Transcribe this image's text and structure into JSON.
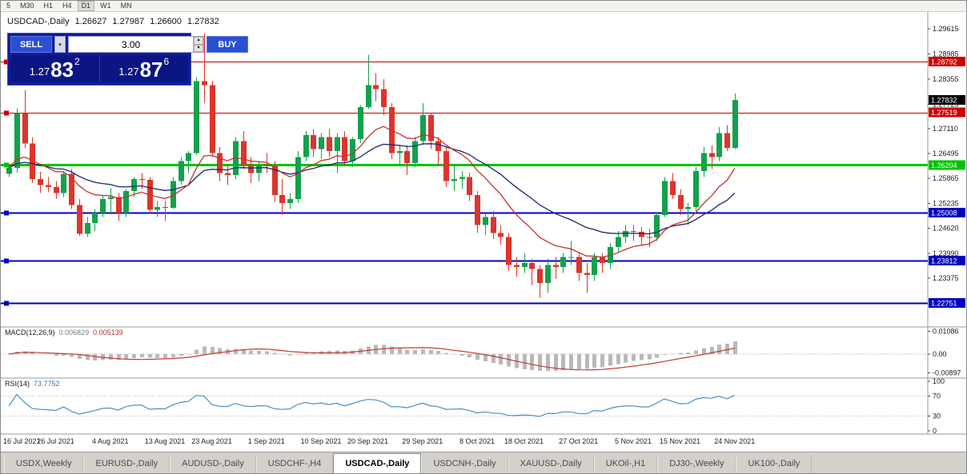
{
  "toolbar": {
    "timeframes": [
      {
        "label": "5",
        "active": false
      },
      {
        "label": "M30",
        "active": false
      },
      {
        "label": "H1",
        "active": false
      },
      {
        "label": "H4",
        "active": false
      },
      {
        "label": "D1",
        "active": true
      },
      {
        "label": "W1",
        "active": false
      },
      {
        "label": "MN",
        "active": false
      }
    ]
  },
  "ohlc_header": {
    "symbol": "USDCAD-,Daily",
    "open": "1.26627",
    "high": "1.27987",
    "low": "1.26600",
    "close": "1.27832"
  },
  "trade_panel": {
    "sell_label": "SELL",
    "buy_label": "BUY",
    "volume": "3.00",
    "sell_price": {
      "prefix": "1.27",
      "big": "83",
      "sup": "2"
    },
    "buy_price": {
      "prefix": "1.27",
      "big": "87",
      "sup": "6"
    },
    "button_color": "#2b4fd2",
    "panel_color": "#101d96"
  },
  "indicators": {
    "macd": {
      "name": "MACD(12,26,9)",
      "value_main": "0.006829",
      "value_signal": "0.005139",
      "histogram_color": "#b9b9b9",
      "signal_color": "#c03a3a",
      "axis": [
        {
          "v": 0.01086,
          "label": "0.01086"
        },
        {
          "v": 0,
          "label": "0.00"
        },
        {
          "v": -0.00897,
          "label": "-0.00897"
        }
      ]
    },
    "rsi": {
      "name": "RSI(14)",
      "value": "73.7752",
      "line_color": "#4a90c4",
      "levels": [
        70,
        30
      ],
      "axis": [
        {
          "v": 100,
          "label": "100"
        },
        {
          "v": 70,
          "label": "70"
        },
        {
          "v": 30,
          "label": "30"
        },
        {
          "v": 0,
          "label": "0"
        }
      ]
    }
  },
  "chart_data": {
    "type": "candlestick",
    "symbol": "USDCAD-,Daily",
    "up_color": "#13a14b",
    "down_color": "#dd342c",
    "ma_fast": {
      "period": 12,
      "color": "#c2342c"
    },
    "ma_slow": {
      "period": 26,
      "color": "#1c2670"
    },
    "bid": {
      "price": 1.27832,
      "label": "1.27832"
    },
    "hlines": [
      {
        "price": 1.28792,
        "color": "#cc0000",
        "width": 1,
        "label": "1.28792"
      },
      {
        "price": 1.27519,
        "color": "#cc0000",
        "width": 1,
        "label": "1.27519"
      },
      {
        "price": 1.26204,
        "color": "#00c400",
        "width": 3,
        "label": "1.26204"
      },
      {
        "price": 1.25008,
        "color": "#0000c0",
        "width": 2,
        "label": "1.25008"
      },
      {
        "price": 1.23812,
        "color": "#0000c0",
        "width": 2,
        "label": "1.23812"
      },
      {
        "price": 1.22751,
        "color": "#0000c0",
        "width": 2,
        "label": "1.22751"
      }
    ],
    "price_axis": [
      "1.29615",
      "1.28985",
      "1.28355",
      "1.27725",
      "1.27110",
      "1.26495",
      "1.25865",
      "1.25235",
      "1.24620",
      "1.23990",
      "1.23375"
    ],
    "date_ticks": [
      {
        "i": 0,
        "label": "16 Jul 2021"
      },
      {
        "i": 6,
        "label": "26 Jul 2021"
      },
      {
        "i": 13,
        "label": "4 Aug 2021"
      },
      {
        "i": 20,
        "label": "13 Aug 2021"
      },
      {
        "i": 26,
        "label": "23 Aug 2021"
      },
      {
        "i": 33,
        "label": "1 Sep 2021"
      },
      {
        "i": 40,
        "label": "10 Sep 2021"
      },
      {
        "i": 46,
        "label": "20 Sep 2021"
      },
      {
        "i": 53,
        "label": "29 Sep 2021"
      },
      {
        "i": 60,
        "label": "8 Oct 2021"
      },
      {
        "i": 66,
        "label": "18 Oct 2021"
      },
      {
        "i": 73,
        "label": "27 Oct 2021"
      },
      {
        "i": 80,
        "label": "5 Nov 2021"
      },
      {
        "i": 86,
        "label": "15 Nov 2021"
      },
      {
        "i": 93,
        "label": "24 Nov 2021"
      }
    ],
    "candles": [
      [
        1.2598,
        1.2621,
        1.259,
        1.2613
      ],
      [
        1.2613,
        1.2762,
        1.2601,
        1.275
      ],
      [
        1.275,
        1.2807,
        1.2662,
        1.2674
      ],
      [
        1.2674,
        1.2689,
        1.2575,
        1.2585
      ],
      [
        1.2585,
        1.2603,
        1.255,
        1.257
      ],
      [
        1.257,
        1.259,
        1.2552,
        1.2565
      ],
      [
        1.2565,
        1.258,
        1.2535,
        1.255
      ],
      [
        1.255,
        1.2605,
        1.254,
        1.2598
      ],
      [
        1.2598,
        1.261,
        1.251,
        1.252
      ],
      [
        1.252,
        1.2535,
        1.2443,
        1.2448
      ],
      [
        1.2448,
        1.249,
        1.244,
        1.2475
      ],
      [
        1.2475,
        1.251,
        1.2455,
        1.25
      ],
      [
        1.25,
        1.2545,
        1.249,
        1.2535
      ],
      [
        1.2535,
        1.2562,
        1.25,
        1.254
      ],
      [
        1.254,
        1.255,
        1.248,
        1.25
      ],
      [
        1.25,
        1.256,
        1.249,
        1.2555
      ],
      [
        1.2555,
        1.259,
        1.254,
        1.2585
      ],
      [
        1.2585,
        1.26,
        1.256,
        1.2583
      ],
      [
        1.2583,
        1.259,
        1.2498,
        1.2508
      ],
      [
        1.2508,
        1.253,
        1.249,
        1.2515
      ],
      [
        1.2515,
        1.253,
        1.248,
        1.2513
      ],
      [
        1.2513,
        1.259,
        1.251,
        1.258
      ],
      [
        1.258,
        1.264,
        1.257,
        1.263
      ],
      [
        1.263,
        1.2655,
        1.26,
        1.265
      ],
      [
        1.265,
        1.284,
        1.2645,
        1.283
      ],
      [
        1.283,
        1.2949,
        1.2775,
        1.282
      ],
      [
        1.282,
        1.283,
        1.264,
        1.265
      ],
      [
        1.265,
        1.2665,
        1.258,
        1.26
      ],
      [
        1.26,
        1.262,
        1.257,
        1.2595
      ],
      [
        1.2595,
        1.269,
        1.2585,
        1.268
      ],
      [
        1.268,
        1.2705,
        1.261,
        1.262
      ],
      [
        1.262,
        1.264,
        1.2575,
        1.26
      ],
      [
        1.26,
        1.263,
        1.258,
        1.262
      ],
      [
        1.262,
        1.265,
        1.26,
        1.2618
      ],
      [
        1.2618,
        1.263,
        1.2528,
        1.2545
      ],
      [
        1.2545,
        1.2585,
        1.2495,
        1.2525
      ],
      [
        1.2525,
        1.255,
        1.251,
        1.2535
      ],
      [
        1.2535,
        1.2655,
        1.2525,
        1.264
      ],
      [
        1.264,
        1.2705,
        1.263,
        1.2695
      ],
      [
        1.2695,
        1.271,
        1.264,
        1.266
      ],
      [
        1.266,
        1.27,
        1.2635,
        1.269
      ],
      [
        1.269,
        1.271,
        1.264,
        1.2655
      ],
      [
        1.2655,
        1.27,
        1.26,
        1.269
      ],
      [
        1.269,
        1.2705,
        1.262,
        1.263
      ],
      [
        1.263,
        1.269,
        1.2615,
        1.2685
      ],
      [
        1.2685,
        1.277,
        1.2675,
        1.2765
      ],
      [
        1.2765,
        1.2896,
        1.276,
        1.282
      ],
      [
        1.282,
        1.285,
        1.278,
        1.281
      ],
      [
        1.281,
        1.2835,
        1.2745,
        1.2765
      ],
      [
        1.2765,
        1.2775,
        1.2635,
        1.265
      ],
      [
        1.265,
        1.267,
        1.262,
        1.2655
      ],
      [
        1.2655,
        1.267,
        1.2595,
        1.2625
      ],
      [
        1.2625,
        1.269,
        1.2615,
        1.268
      ],
      [
        1.268,
        1.2775,
        1.267,
        1.2745
      ],
      [
        1.2745,
        1.275,
        1.266,
        1.268
      ],
      [
        1.268,
        1.269,
        1.262,
        1.2655
      ],
      [
        1.2655,
        1.2665,
        1.2565,
        1.258
      ],
      [
        1.258,
        1.262,
        1.2555,
        1.2585
      ],
      [
        1.2585,
        1.2605,
        1.256,
        1.259
      ],
      [
        1.259,
        1.26,
        1.253,
        1.2545
      ],
      [
        1.2545,
        1.2555,
        1.245,
        1.247
      ],
      [
        1.247,
        1.25,
        1.2445,
        1.249
      ],
      [
        1.249,
        1.2505,
        1.2435,
        1.245
      ],
      [
        1.245,
        1.247,
        1.242,
        1.244
      ],
      [
        1.244,
        1.245,
        1.2355,
        1.237
      ],
      [
        1.237,
        1.239,
        1.234,
        1.2365
      ],
      [
        1.2365,
        1.24,
        1.235,
        1.2375
      ],
      [
        1.2375,
        1.2385,
        1.232,
        1.236
      ],
      [
        1.236,
        1.237,
        1.2288,
        1.2325
      ],
      [
        1.2325,
        1.2385,
        1.23,
        1.237
      ],
      [
        1.237,
        1.239,
        1.2335,
        1.2365
      ],
      [
        1.2365,
        1.24,
        1.235,
        1.239
      ],
      [
        1.239,
        1.243,
        1.237,
        1.239
      ],
      [
        1.239,
        1.24,
        1.233,
        1.235
      ],
      [
        1.235,
        1.2375,
        1.23,
        1.2345
      ],
      [
        1.2345,
        1.24,
        1.233,
        1.239
      ],
      [
        1.239,
        1.24,
        1.235,
        1.2375
      ],
      [
        1.2375,
        1.2425,
        1.236,
        1.2415
      ],
      [
        1.2415,
        1.2455,
        1.24,
        1.244
      ],
      [
        1.244,
        1.247,
        1.2425,
        1.2455
      ],
      [
        1.2455,
        1.247,
        1.243,
        1.2453
      ],
      [
        1.2453,
        1.2465,
        1.242,
        1.244
      ],
      [
        1.244,
        1.246,
        1.2415,
        1.2439
      ],
      [
        1.2439,
        1.25,
        1.243,
        1.2495
      ],
      [
        1.2495,
        1.259,
        1.249,
        1.258
      ],
      [
        1.258,
        1.26,
        1.2535,
        1.2545
      ],
      [
        1.2545,
        1.256,
        1.2495,
        1.251
      ],
      [
        1.251,
        1.2525,
        1.247,
        1.2515
      ],
      [
        1.2515,
        1.2615,
        1.2505,
        1.2605
      ],
      [
        1.2605,
        1.2665,
        1.259,
        1.265
      ],
      [
        1.265,
        1.267,
        1.261,
        1.264
      ],
      [
        1.264,
        1.2715,
        1.263,
        1.27
      ],
      [
        1.27,
        1.272,
        1.2655,
        1.2663
      ],
      [
        1.26627,
        1.27987,
        1.266,
        1.27832
      ]
    ]
  },
  "tabbar": {
    "tabs": [
      {
        "label": "USDX,Weekly",
        "active": false
      },
      {
        "label": "EURUSD-,Daily",
        "active": false
      },
      {
        "label": "AUDUSD-,Daily",
        "active": false
      },
      {
        "label": "USDCHF-,H4",
        "active": false
      },
      {
        "label": "USDCAD-,Daily",
        "active": true
      },
      {
        "label": "USDCNH-,Daily",
        "active": false
      },
      {
        "label": "XAUUSD-,Daily",
        "active": false
      },
      {
        "label": "UKOil-,H1",
        "active": false
      },
      {
        "label": "DJ30-,Weekly",
        "active": false
      },
      {
        "label": "UK100-,Daily",
        "active": false
      }
    ]
  }
}
